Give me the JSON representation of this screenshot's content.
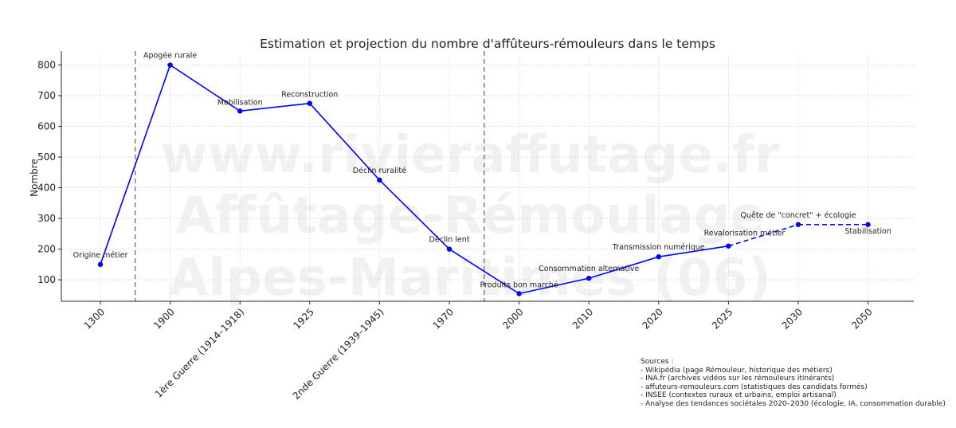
{
  "chart_data": {
    "type": "line",
    "title": "Estimation et projection du nombre d'affûteurs-rémouleurs dans le temps",
    "xlabel": "",
    "ylabel": "Nombre",
    "ylim": [
      30,
      830
    ],
    "yticks": [
      100,
      200,
      300,
      400,
      500,
      600,
      700,
      800
    ],
    "grid": true,
    "categories": [
      "1300",
      "1900",
      "1ère Guerre (1914–1918)",
      "1925",
      "2nde Guerre (1939–1945)",
      "1970",
      "2000",
      "2010",
      "2020",
      "2025",
      "2030",
      "2050"
    ],
    "series": [
      {
        "color": "#0000ff",
        "points": [
          {
            "x": "1300",
            "y": 150,
            "label": "Origine métier",
            "style": "solid"
          },
          {
            "x": "1900",
            "y": 800,
            "label": "Apogée rurale",
            "style": "solid"
          },
          {
            "x": "1ère Guerre (1914–1918)",
            "y": 650,
            "label": "Mobilisation",
            "style": "solid"
          },
          {
            "x": "1925",
            "y": 675,
            "label": "Reconstruction",
            "style": "solid"
          },
          {
            "x": "2nde Guerre (1939–1945)",
            "y": 425,
            "label": "Déclin ruralité",
            "style": "solid"
          },
          {
            "x": "1970",
            "y": 200,
            "label": "Déclin lent",
            "style": "solid"
          },
          {
            "x": "2000",
            "y": 55,
            "label": "Produits bon marché",
            "style": "solid"
          },
          {
            "x": "2010",
            "y": 105,
            "label": "Consommation alternative",
            "style": "solid"
          },
          {
            "x": "2020",
            "y": 175,
            "label": "Transmission numérique",
            "style": "solid"
          },
          {
            "x": "2025",
            "y": 210,
            "label": "Revalorisation métier",
            "style": "solid"
          },
          {
            "x": "2030",
            "y": 280,
            "label": "Quête de \"concret\" + écologie",
            "style": "dashed"
          },
          {
            "x": "2050",
            "y": 280,
            "label": "Stabilisation",
            "style": "dashed"
          }
        ]
      }
    ],
    "vlines_between": [
      [
        "1300",
        "1900"
      ],
      [
        "1970",
        "2000"
      ]
    ],
    "watermark": [
      "www.rivieraffutage.fr",
      "Affûtage-Rémoulage",
      "Alpes-Maritimes (06)"
    ],
    "colors": {
      "line": "#0000ff",
      "vline": "#808080",
      "grid": "#d9d9d9",
      "watermark": "#f1f1f1"
    }
  },
  "sources": {
    "title": "Sources :",
    "items": [
      "- Wikipédia (page Rémouleur, historique des métiers)",
      "- INA.fr (archives vidéos sur les rémouleurs itinérants)",
      "- affuteurs-remouleurs.com (statistiques des candidats formés)",
      "- INSEE (contextes ruraux et urbains, emploi artisanal)",
      "- Analyse des tendances sociétales 2020–2030 (écologie, IA, consommation durable)"
    ]
  }
}
